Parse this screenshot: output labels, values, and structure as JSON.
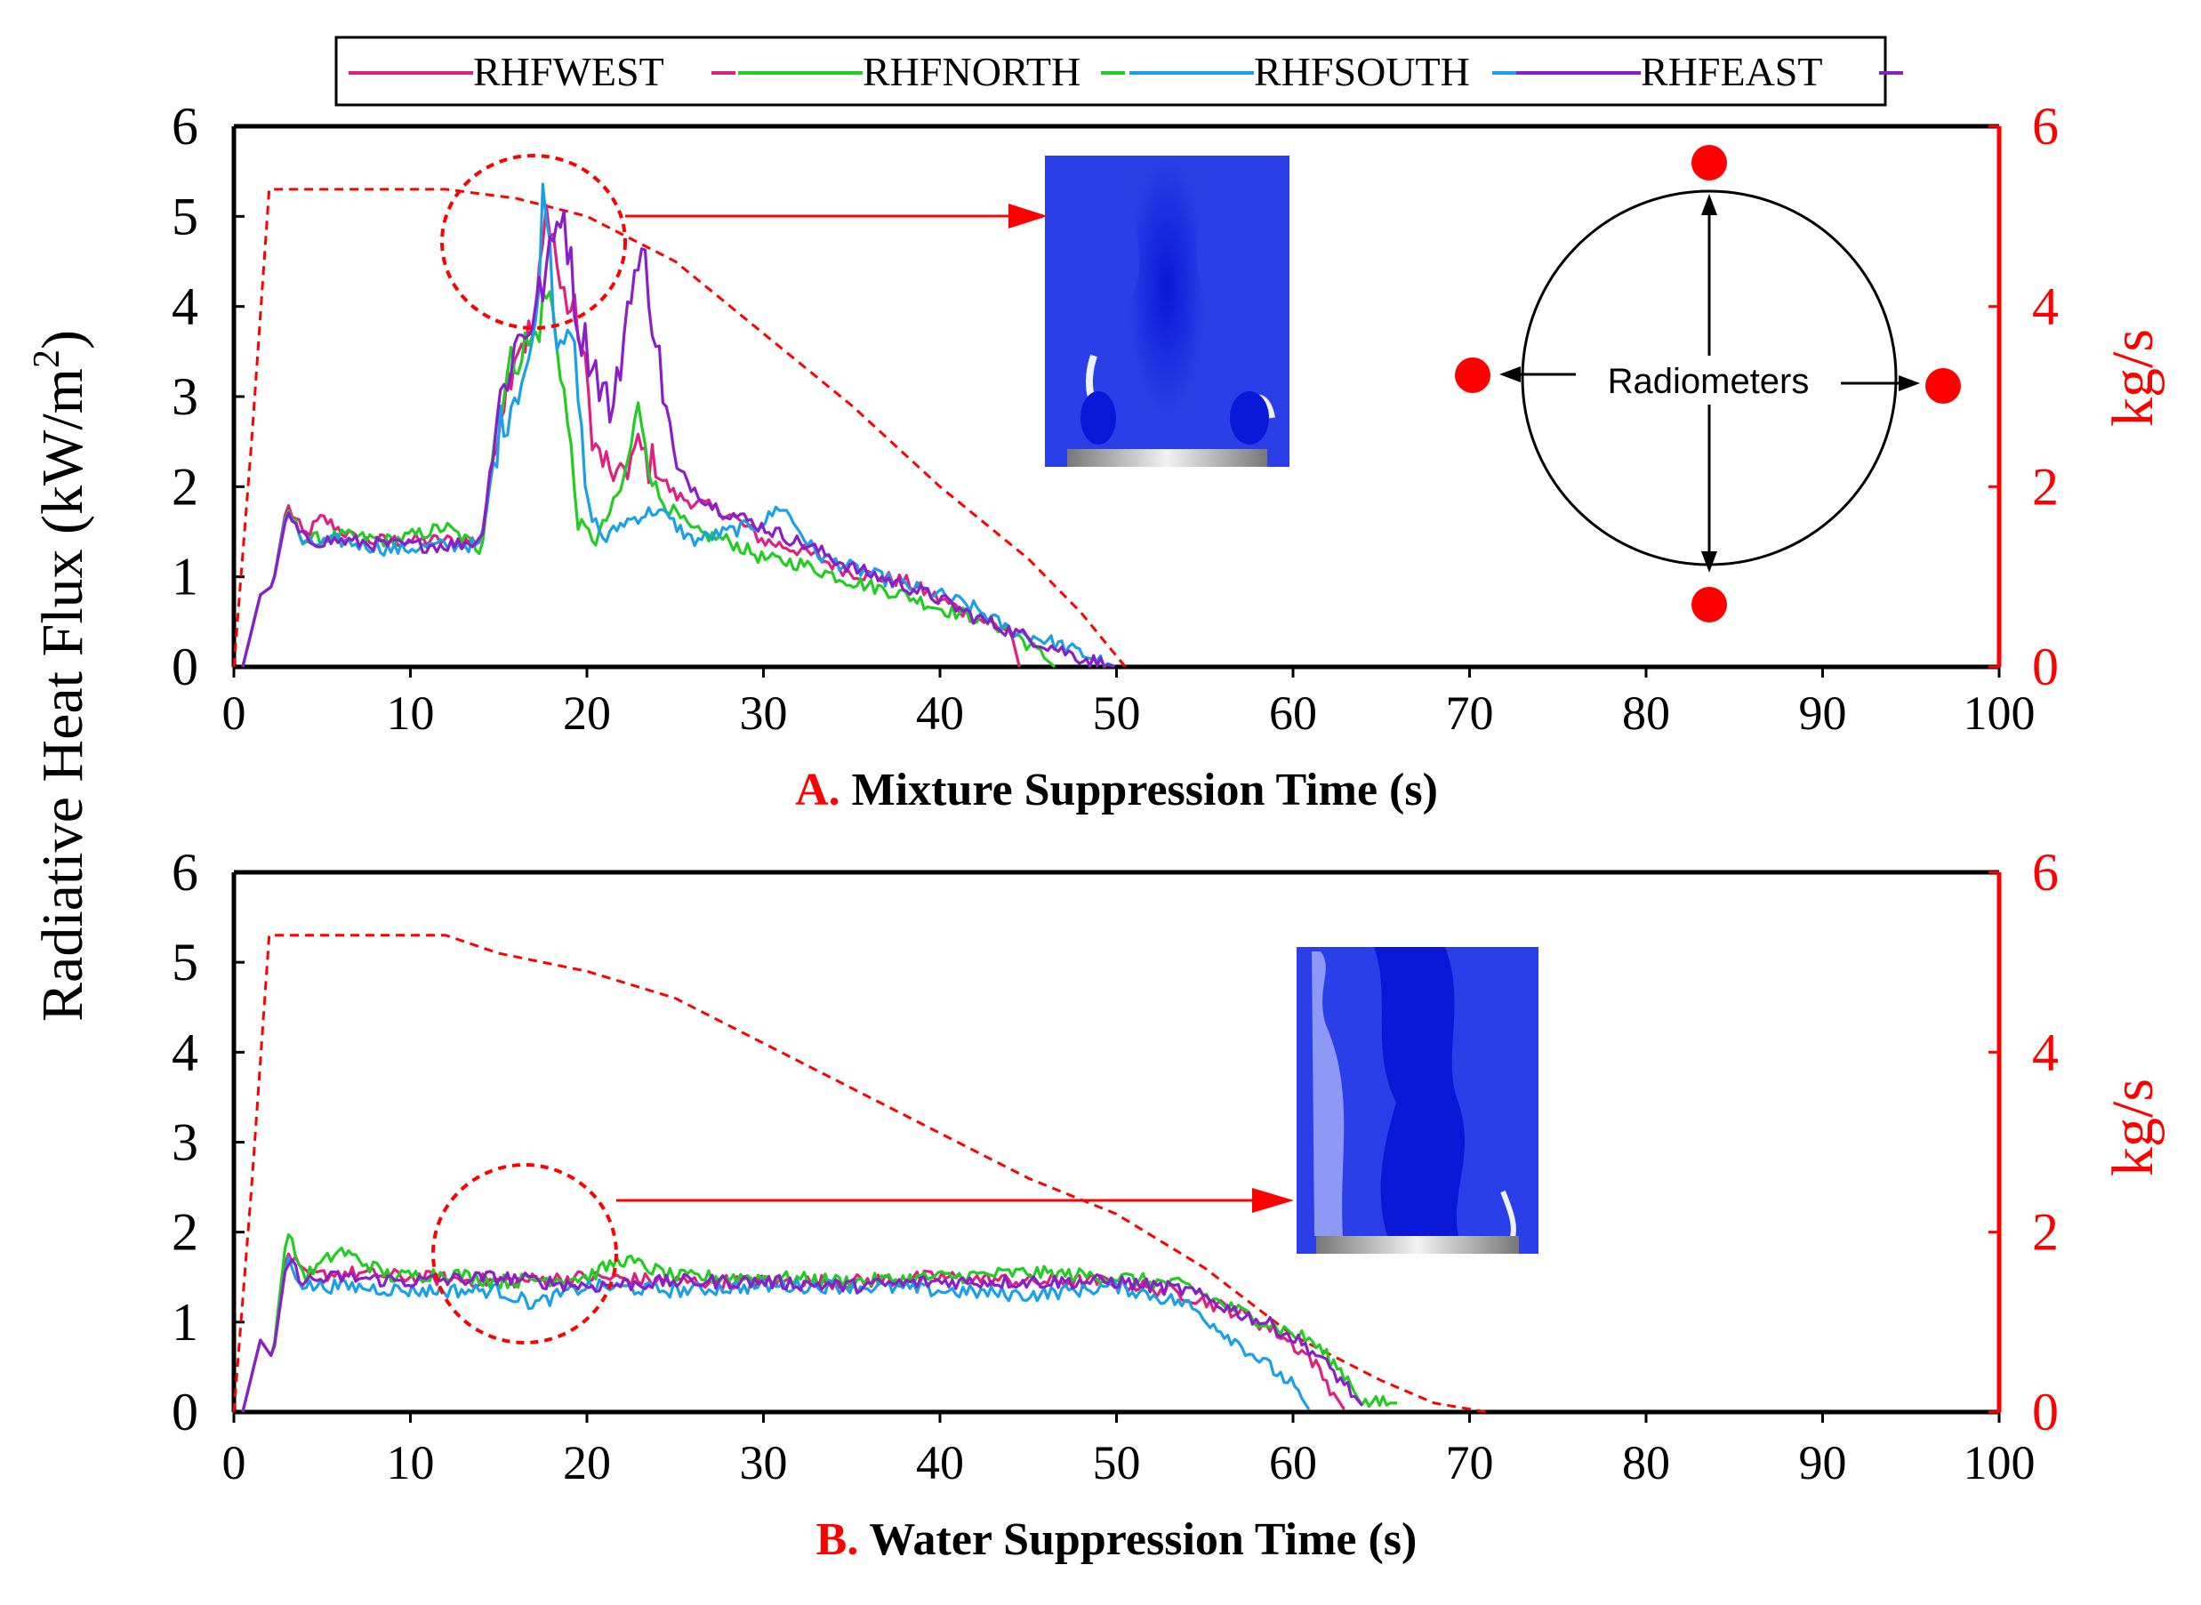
{
  "legend": {
    "entries": [
      {
        "name": "RHFWEST",
        "color": "#e0207e"
      },
      {
        "name": "RHFNORTH",
        "color": "#22cc22"
      },
      {
        "name": "RHFSOUTH",
        "color": "#1aa0e6"
      },
      {
        "name": "RHFEAST",
        "color": "#8a1ec8"
      }
    ]
  },
  "shared_ylabel": "Radiative Heat Flux (kW/m",
  "shared_ylabel_sup": "2",
  "shared_ylabel_end": ")",
  "colors": {
    "axis": "#000000",
    "secondary": "#ff0000",
    "inset_blue": "#2233dd"
  },
  "chart_data": [
    {
      "type": "line",
      "panel_letter": "A.",
      "xlabel": "Mixture Suppression Time (s)",
      "ylabel_right": "kg/s",
      "xlim": [
        0,
        100
      ],
      "ylim": [
        0,
        6
      ],
      "y2lim": [
        0,
        6
      ],
      "xticks": [
        "0",
        "10",
        "20",
        "30",
        "40",
        "50",
        "60",
        "70",
        "80",
        "90",
        "100"
      ],
      "yticks": [
        "0",
        "1",
        "2",
        "3",
        "4",
        "5",
        "6"
      ],
      "y2ticks": [
        "0",
        "2",
        "4",
        "6"
      ],
      "mass_flow": {
        "name": "kg/s",
        "style": "dashed",
        "color": "#ff0000",
        "points": [
          [
            0,
            0
          ],
          [
            1,
            2.5
          ],
          [
            2,
            5.3
          ],
          [
            12,
            5.3
          ],
          [
            16,
            5.2
          ],
          [
            20,
            5.0
          ],
          [
            25,
            4.5
          ],
          [
            30,
            3.7
          ],
          [
            35,
            2.9
          ],
          [
            40,
            2.0
          ],
          [
            45,
            1.2
          ],
          [
            48,
            0.6
          ],
          [
            50.5,
            0
          ]
        ]
      },
      "series": [
        {
          "name": "RHFWEST",
          "color": "#e0207e",
          "keypoints": [
            [
              0.5,
              0
            ],
            [
              1.5,
              0.8
            ],
            [
              2.2,
              0.9
            ],
            [
              3,
              1.8
            ],
            [
              4,
              1.45
            ],
            [
              5,
              1.65
            ],
            [
              7,
              1.4
            ],
            [
              10,
              1.4
            ],
            [
              13,
              1.4
            ],
            [
              14,
              1.4
            ],
            [
              15,
              2.8
            ],
            [
              16,
              3.6
            ],
            [
              17,
              3.7
            ],
            [
              17.8,
              5.2
            ],
            [
              18.5,
              4.2
            ],
            [
              19.5,
              3.8
            ],
            [
              20.5,
              2.4
            ],
            [
              21.5,
              2.1
            ],
            [
              23,
              2.4
            ],
            [
              25,
              1.9
            ],
            [
              28,
              1.7
            ],
            [
              30,
              1.4
            ],
            [
              32,
              1.3
            ],
            [
              35,
              1.05
            ],
            [
              38,
              0.95
            ],
            [
              40,
              0.75
            ],
            [
              42,
              0.55
            ],
            [
              44,
              0.4
            ],
            [
              44.5,
              0
            ]
          ]
        },
        {
          "name": "RHFNORTH",
          "color": "#22cc22",
          "keypoints": [
            [
              0.5,
              0
            ],
            [
              1.5,
              0.8
            ],
            [
              2.2,
              0.9
            ],
            [
              3,
              1.75
            ],
            [
              4,
              1.4
            ],
            [
              6,
              1.45
            ],
            [
              9,
              1.4
            ],
            [
              12,
              1.55
            ],
            [
              14,
              1.3
            ],
            [
              15,
              2.9
            ],
            [
              16,
              3.5
            ],
            [
              17,
              3.6
            ],
            [
              17.8,
              4.2
            ],
            [
              18.5,
              3.4
            ],
            [
              19.5,
              1.6
            ],
            [
              20.5,
              1.4
            ],
            [
              22,
              2.0
            ],
            [
              23,
              2.9
            ],
            [
              24,
              1.9
            ],
            [
              26,
              1.5
            ],
            [
              28,
              1.4
            ],
            [
              30,
              1.2
            ],
            [
              32,
              1.15
            ],
            [
              35,
              0.95
            ],
            [
              38,
              0.8
            ],
            [
              40,
              0.65
            ],
            [
              42,
              0.55
            ],
            [
              44,
              0.4
            ],
            [
              45,
              0.25
            ],
            [
              46.5,
              0
            ]
          ]
        },
        {
          "name": "RHFSOUTH",
          "color": "#1aa0e6",
          "keypoints": [
            [
              0.5,
              0
            ],
            [
              1.5,
              0.8
            ],
            [
              2.2,
              0.9
            ],
            [
              3,
              1.75
            ],
            [
              4,
              1.35
            ],
            [
              6,
              1.4
            ],
            [
              9,
              1.3
            ],
            [
              12,
              1.35
            ],
            [
              14,
              1.35
            ],
            [
              15,
              2.6
            ],
            [
              16,
              3.1
            ],
            [
              17,
              3.5
            ],
            [
              17.6,
              5.5
            ],
            [
              18.3,
              3.6
            ],
            [
              19,
              4.0
            ],
            [
              20,
              1.8
            ],
            [
              21,
              1.4
            ],
            [
              22,
              1.6
            ],
            [
              24,
              1.75
            ],
            [
              26,
              1.4
            ],
            [
              28,
              1.5
            ],
            [
              30,
              1.6
            ],
            [
              31,
              1.8
            ],
            [
              33,
              1.25
            ],
            [
              35,
              1.1
            ],
            [
              38,
              0.9
            ],
            [
              40,
              0.8
            ],
            [
              42,
              0.65
            ],
            [
              44,
              0.4
            ],
            [
              46,
              0.3
            ],
            [
              48,
              0.15
            ],
            [
              50,
              0
            ]
          ]
        },
        {
          "name": "RHFEAST",
          "color": "#8a1ec8",
          "keypoints": [
            [
              0.5,
              0
            ],
            [
              1.5,
              0.8
            ],
            [
              2.2,
              0.9
            ],
            [
              3,
              1.7
            ],
            [
              4,
              1.4
            ],
            [
              6,
              1.4
            ],
            [
              9,
              1.35
            ],
            [
              12,
              1.35
            ],
            [
              14,
              1.4
            ],
            [
              15,
              2.9
            ],
            [
              16,
              3.6
            ],
            [
              17,
              3.9
            ],
            [
              18,
              4.6
            ],
            [
              18.6,
              5.2
            ],
            [
              19.5,
              3.8
            ],
            [
              20.5,
              3.3
            ],
            [
              21.5,
              2.8
            ],
            [
              22.5,
              4.3
            ],
            [
              23.3,
              4.5
            ],
            [
              24,
              3.5
            ],
            [
              25,
              2.2
            ],
            [
              27,
              1.8
            ],
            [
              30,
              1.55
            ],
            [
              33,
              1.3
            ],
            [
              35,
              1.1
            ],
            [
              38,
              0.9
            ],
            [
              40,
              0.75
            ],
            [
              42,
              0.55
            ],
            [
              44,
              0.4
            ],
            [
              46,
              0.25
            ],
            [
              48,
              0.1
            ],
            [
              50,
              0
            ]
          ]
        }
      ],
      "inset": {
        "radiometer_label": "Radiometers"
      }
    },
    {
      "type": "line",
      "panel_letter": "B.",
      "xlabel": "Water Suppression Time (s)",
      "ylabel_right": "kg/s",
      "xlim": [
        0,
        100
      ],
      "ylim": [
        0,
        6
      ],
      "y2lim": [
        0,
        6
      ],
      "xticks": [
        "0",
        "10",
        "20",
        "30",
        "40",
        "50",
        "60",
        "70",
        "80",
        "90",
        "100"
      ],
      "yticks": [
        "0",
        "1",
        "2",
        "3",
        "4",
        "5",
        "6"
      ],
      "y2ticks": [
        "0",
        "2",
        "4",
        "6"
      ],
      "mass_flow": {
        "name": "kg/s",
        "style": "dashed",
        "color": "#ff0000",
        "points": [
          [
            0,
            0
          ],
          [
            1,
            2.5
          ],
          [
            2,
            5.3
          ],
          [
            12,
            5.3
          ],
          [
            15,
            5.1
          ],
          [
            20,
            4.9
          ],
          [
            25,
            4.6
          ],
          [
            30,
            4.1
          ],
          [
            35,
            3.6
          ],
          [
            40,
            3.1
          ],
          [
            45,
            2.6
          ],
          [
            50,
            2.2
          ],
          [
            55,
            1.6
          ],
          [
            60,
            0.85
          ],
          [
            65,
            0.35
          ],
          [
            68,
            0.1
          ],
          [
            71,
            0
          ]
        ]
      },
      "series": [
        {
          "name": "RHFWEST",
          "color": "#e0207e",
          "keypoints": [
            [
              0.5,
              0
            ],
            [
              1.5,
              0.8
            ],
            [
              2.2,
              0.6
            ],
            [
              3,
              1.8
            ],
            [
              4,
              1.5
            ],
            [
              6,
              1.55
            ],
            [
              10,
              1.5
            ],
            [
              15,
              1.45
            ],
            [
              20,
              1.5
            ],
            [
              25,
              1.45
            ],
            [
              30,
              1.45
            ],
            [
              35,
              1.45
            ],
            [
              40,
              1.5
            ],
            [
              45,
              1.45
            ],
            [
              50,
              1.45
            ],
            [
              54,
              1.3
            ],
            [
              57,
              1.1
            ],
            [
              59,
              0.9
            ],
            [
              61,
              0.6
            ],
            [
              62,
              0.3
            ],
            [
              63,
              0
            ]
          ]
        },
        {
          "name": "RHFNORTH",
          "color": "#22cc22",
          "keypoints": [
            [
              0.5,
              0
            ],
            [
              1.5,
              0.8
            ],
            [
              2.2,
              0.6
            ],
            [
              3,
              2.0
            ],
            [
              4,
              1.5
            ],
            [
              6,
              1.8
            ],
            [
              9,
              1.5
            ],
            [
              12,
              1.55
            ],
            [
              15,
              1.45
            ],
            [
              20,
              1.5
            ],
            [
              22,
              1.7
            ],
            [
              25,
              1.5
            ],
            [
              30,
              1.5
            ],
            [
              35,
              1.45
            ],
            [
              40,
              1.5
            ],
            [
              45,
              1.55
            ],
            [
              50,
              1.5
            ],
            [
              54,
              1.4
            ],
            [
              56,
              1.2
            ],
            [
              59,
              0.95
            ],
            [
              61,
              0.8
            ],
            [
              63,
              0.4
            ],
            [
              64,
              0.1
            ],
            [
              66,
              0.1
            ]
          ]
        },
        {
          "name": "RHFSOUTH",
          "color": "#1aa0e6",
          "keypoints": [
            [
              0.5,
              0
            ],
            [
              1.5,
              0.8
            ],
            [
              2.2,
              0.6
            ],
            [
              3,
              1.7
            ],
            [
              4,
              1.4
            ],
            [
              6,
              1.4
            ],
            [
              10,
              1.35
            ],
            [
              15,
              1.35
            ],
            [
              17,
              1.2
            ],
            [
              20,
              1.4
            ],
            [
              25,
              1.35
            ],
            [
              30,
              1.4
            ],
            [
              35,
              1.4
            ],
            [
              40,
              1.35
            ],
            [
              45,
              1.3
            ],
            [
              50,
              1.4
            ],
            [
              54,
              1.2
            ],
            [
              56,
              0.9
            ],
            [
              58,
              0.6
            ],
            [
              60,
              0.3
            ],
            [
              61,
              0
            ]
          ]
        },
        {
          "name": "RHFEAST",
          "color": "#8a1ec8",
          "keypoints": [
            [
              0.5,
              0
            ],
            [
              1.5,
              0.8
            ],
            [
              2.2,
              0.6
            ],
            [
              3,
              1.7
            ],
            [
              4,
              1.45
            ],
            [
              6,
              1.5
            ],
            [
              10,
              1.45
            ],
            [
              15,
              1.5
            ],
            [
              20,
              1.4
            ],
            [
              25,
              1.45
            ],
            [
              30,
              1.45
            ],
            [
              35,
              1.4
            ],
            [
              40,
              1.45
            ],
            [
              45,
              1.45
            ],
            [
              50,
              1.45
            ],
            [
              54,
              1.35
            ],
            [
              57,
              1.1
            ],
            [
              59,
              0.95
            ],
            [
              61,
              0.7
            ],
            [
              63,
              0.3
            ],
            [
              64,
              0.05
            ]
          ]
        }
      ]
    }
  ]
}
